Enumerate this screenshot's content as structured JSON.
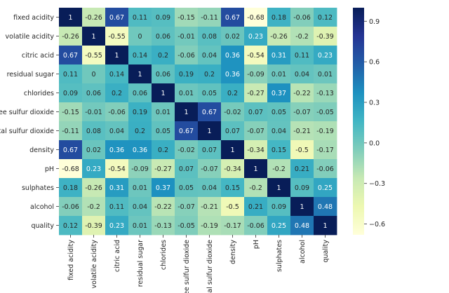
{
  "chart_data": {
    "type": "heatmap",
    "title": "",
    "xlabel": "",
    "ylabel": "",
    "labels": [
      "fixed acidity",
      "volatile acidity",
      "citric acid",
      "residual sugar",
      "chlorides",
      "free sulfur dioxide",
      "total sulfur dioxide",
      "density",
      "pH",
      "sulphates",
      "alcohol",
      "quality"
    ],
    "matrix": [
      [
        1,
        -0.26,
        0.67,
        0.11,
        0.09,
        -0.15,
        -0.11,
        0.67,
        -0.68,
        0.18,
        -0.06,
        0.12
      ],
      [
        -0.26,
        1,
        -0.55,
        0,
        0.06,
        -0.01,
        0.08,
        0.02,
        0.23,
        -0.26,
        -0.2,
        -0.39
      ],
      [
        0.67,
        -0.55,
        1,
        0.14,
        0.2,
        -0.06,
        0.04,
        0.36,
        -0.54,
        0.31,
        0.11,
        0.23
      ],
      [
        0.11,
        0,
        0.14,
        1,
        0.06,
        0.19,
        0.2,
        0.36,
        -0.09,
        0.01,
        0.04,
        0.01
      ],
      [
        0.09,
        0.06,
        0.2,
        0.06,
        1,
        0.01,
        0.05,
        0.2,
        -0.27,
        0.37,
        -0.22,
        -0.13
      ],
      [
        -0.15,
        -0.01,
        -0.06,
        0.19,
        0.01,
        1,
        0.67,
        -0.02,
        0.07,
        0.05,
        -0.07,
        -0.05
      ],
      [
        -0.11,
        0.08,
        0.04,
        0.2,
        0.05,
        0.67,
        1,
        0.07,
        -0.07,
        0.04,
        -0.21,
        -0.19
      ],
      [
        0.67,
        0.02,
        0.36,
        0.36,
        0.2,
        -0.02,
        0.07,
        1,
        -0.34,
        0.15,
        -0.5,
        -0.17
      ],
      [
        -0.68,
        0.23,
        -0.54,
        -0.09,
        -0.27,
        0.07,
        -0.07,
        -0.34,
        1,
        -0.2,
        0.21,
        -0.06
      ],
      [
        0.18,
        -0.26,
        0.31,
        0.01,
        0.37,
        0.05,
        0.04,
        0.15,
        -0.2,
        1,
        0.09,
        0.25
      ],
      [
        -0.06,
        -0.2,
        0.11,
        0.04,
        -0.22,
        -0.07,
        -0.21,
        -0.5,
        0.21,
        0.09,
        1,
        0.48
      ],
      [
        0.12,
        -0.39,
        0.23,
        0.01,
        -0.13,
        -0.05,
        -0.19,
        -0.17,
        -0.06,
        0.25,
        0.48,
        1
      ]
    ],
    "value_range": [
      -0.68,
      1
    ],
    "colormap": "YlGnBu",
    "colorbar": {
      "tick_values": [
        0.9,
        0.6,
        0.3,
        0.0,
        -0.3,
        -0.6
      ],
      "tick_labels": [
        "0.9",
        "0.6",
        "0.3",
        "0.0",
        "−0.3",
        "−0.6"
      ]
    },
    "annotations": true,
    "legend": "colorbar-right",
    "grid": false
  }
}
